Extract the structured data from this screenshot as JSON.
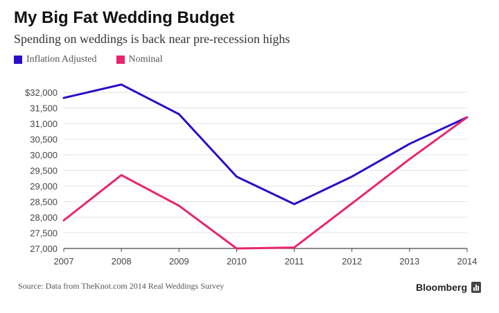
{
  "title": "My Big Fat Wedding Budget",
  "subtitle": "Spending on weddings is back near pre-recession highs",
  "legend": [
    {
      "label": "Inflation Adjusted",
      "color": "#2a0cc8"
    },
    {
      "label": "Nominal",
      "color": "#e8246e"
    }
  ],
  "source": "Source: Data from TheKnot.com 2014 Real Weddings Survey",
  "brand": "Bloomberg",
  "chart_data": {
    "type": "line",
    "x": [
      2007,
      2008,
      2009,
      2010,
      2011,
      2012,
      2013,
      2014
    ],
    "series": [
      {
        "name": "Inflation Adjusted",
        "color": "#2a0cc8",
        "values": [
          31820,
          32250,
          31300,
          29300,
          28420,
          29300,
          30350,
          31200
        ]
      },
      {
        "name": "Nominal",
        "color": "#e8246e",
        "values": [
          27900,
          29350,
          28370,
          27000,
          27030,
          28440,
          29860,
          31200
        ]
      }
    ],
    "ylim": [
      27000,
      32000
    ],
    "y_ticks": [
      27000,
      27500,
      28000,
      28500,
      29000,
      29500,
      30000,
      30500,
      31000,
      31500,
      32000
    ],
    "y_tick_labels": [
      "27,000",
      "27,500",
      "28,000",
      "28,500",
      "29,000",
      "29,500",
      "30,000",
      "30,500",
      "31,000",
      "31,500",
      "$32,000"
    ],
    "x_tick_labels": [
      "2007",
      "2008",
      "2009",
      "2010",
      "2011",
      "2012",
      "2013",
      "2014"
    ],
    "grid": true
  }
}
